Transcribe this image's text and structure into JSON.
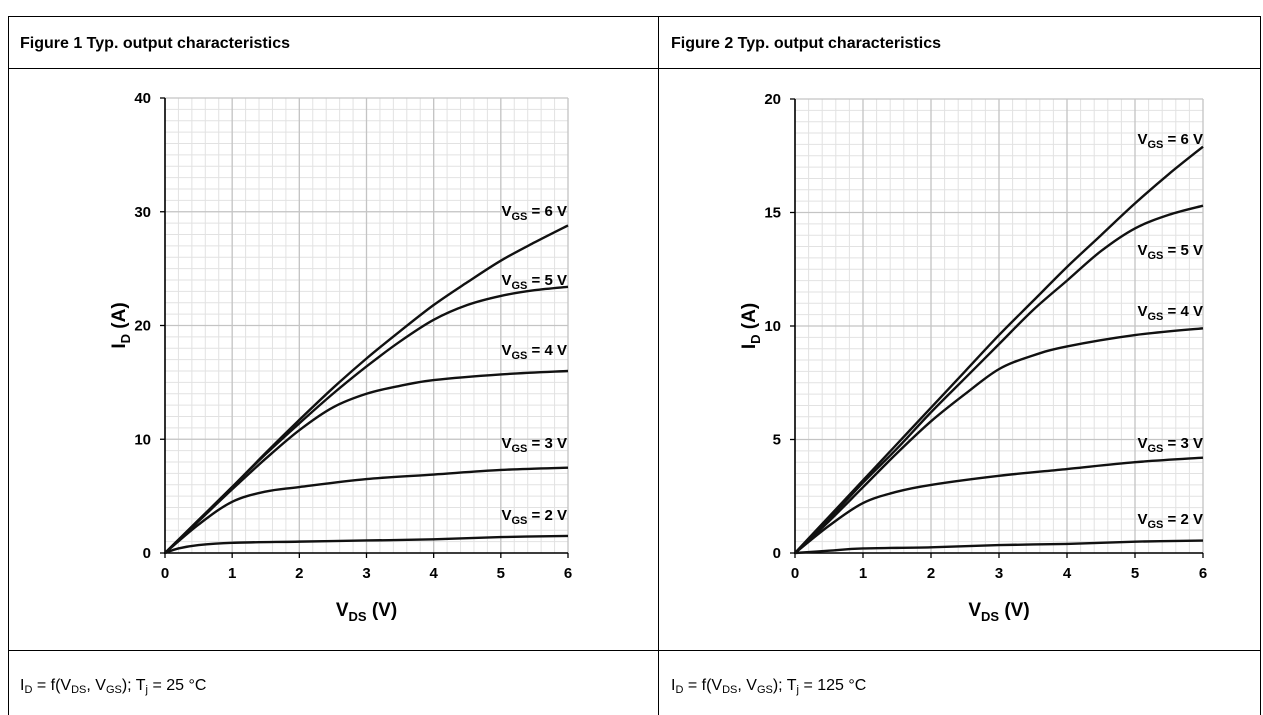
{
  "figures": [
    {
      "header": "Figure 1 Typ. output characteristics",
      "footer": {
        "i": "I",
        "d": "D",
        "eq": " = f(V",
        "ds": "DS",
        "comma": ", V",
        "gs": "GS",
        "tail1": "); T",
        "j": "j",
        "tail2": " = 25 °C"
      }
    },
    {
      "header": "Figure 2 Typ. output characteristics",
      "footer": {
        "i": "I",
        "d": "D",
        "eq": " = f(V",
        "ds": "DS",
        "comma": ", V",
        "gs": "GS",
        "tail1": "); T",
        "j": "j",
        "tail2": " = 125 °C"
      }
    }
  ],
  "chart_data": [
    {
      "type": "line",
      "title": "",
      "xlabel": "V_DS (V)",
      "ylabel": "I_D (A)",
      "xlim": [
        0,
        6
      ],
      "ylim": [
        0,
        40
      ],
      "x_ticks": [
        "0",
        "1",
        "2",
        "3",
        "4",
        "5",
        "6"
      ],
      "y_ticks": [
        "0",
        "10",
        "20",
        "30",
        "40"
      ],
      "grid": true,
      "series": [
        {
          "name": "V_GS = 2 V",
          "label_parts": [
            "V",
            "GS",
            " = 2 V"
          ],
          "x": [
            0,
            0.2,
            0.5,
            1,
            2,
            3,
            4,
            5,
            6
          ],
          "y": [
            0,
            0.4,
            0.7,
            0.9,
            1.0,
            1.1,
            1.2,
            1.4,
            1.5
          ]
        },
        {
          "name": "V_GS = 3 V",
          "label_parts": [
            "V",
            "GS",
            " = 3 V"
          ],
          "x": [
            0,
            0.5,
            1,
            1.5,
            2,
            3,
            4,
            5,
            6
          ],
          "y": [
            0,
            2.5,
            4.5,
            5.4,
            5.8,
            6.5,
            6.9,
            7.3,
            7.5
          ]
        },
        {
          "name": "V_GS = 4 V",
          "label_parts": [
            "V",
            "GS",
            " = 4 V"
          ],
          "x": [
            0,
            0.5,
            1,
            1.5,
            2,
            2.5,
            3,
            3.5,
            4,
            5,
            6
          ],
          "y": [
            0,
            2.8,
            5.6,
            8.3,
            10.8,
            12.8,
            14.0,
            14.7,
            15.2,
            15.7,
            16.0
          ]
        },
        {
          "name": "V_GS = 5 V",
          "label_parts": [
            "V",
            "GS",
            " = 5 V"
          ],
          "x": [
            0,
            0.5,
            1,
            1.5,
            2,
            2.5,
            3,
            3.5,
            4,
            4.5,
            5,
            5.5,
            6
          ],
          "y": [
            0,
            2.9,
            5.8,
            8.7,
            11.4,
            14.0,
            16.4,
            18.6,
            20.5,
            21.8,
            22.6,
            23.1,
            23.4
          ]
        },
        {
          "name": "V_GS = 6 V",
          "label_parts": [
            "V",
            "GS",
            " = 6 V"
          ],
          "x": [
            0,
            0.5,
            1,
            1.5,
            2,
            2.5,
            3,
            3.5,
            4,
            4.5,
            5,
            5.5,
            6
          ],
          "y": [
            0,
            2.9,
            5.8,
            8.8,
            11.7,
            14.5,
            17.1,
            19.5,
            21.8,
            23.8,
            25.7,
            27.3,
            28.8
          ]
        }
      ]
    },
    {
      "type": "line",
      "title": "",
      "xlabel": "V_DS (V)",
      "ylabel": "I_D (A)",
      "xlim": [
        0,
        6
      ],
      "ylim": [
        0,
        20
      ],
      "x_ticks": [
        "0",
        "1",
        "2",
        "3",
        "4",
        "5",
        "6"
      ],
      "y_ticks": [
        "0",
        "5",
        "10",
        "15",
        "20"
      ],
      "grid": true,
      "series": [
        {
          "name": "V_GS = 2 V",
          "label_parts": [
            "V",
            "GS",
            " = 2 V"
          ],
          "x": [
            0,
            0.5,
            1,
            2,
            3,
            4,
            5,
            6
          ],
          "y": [
            0,
            0.1,
            0.2,
            0.25,
            0.35,
            0.4,
            0.5,
            0.55
          ]
        },
        {
          "name": "V_GS = 3 V",
          "label_parts": [
            "V",
            "GS",
            " = 3 V"
          ],
          "x": [
            0,
            0.5,
            1,
            1.5,
            2,
            3,
            4,
            5,
            6
          ],
          "y": [
            0,
            1.2,
            2.2,
            2.7,
            3.0,
            3.4,
            3.7,
            4.0,
            4.2
          ]
        },
        {
          "name": "V_GS = 4 V",
          "label_parts": [
            "V",
            "GS",
            " = 4 V"
          ],
          "x": [
            0,
            0.5,
            1,
            1.5,
            2,
            2.5,
            3,
            3.5,
            4,
            5,
            6
          ],
          "y": [
            0,
            1.4,
            2.9,
            4.4,
            5.8,
            7.0,
            8.1,
            8.7,
            9.1,
            9.6,
            9.9
          ]
        },
        {
          "name": "V_GS = 5 V",
          "label_parts": [
            "V",
            "GS",
            " = 5 V"
          ],
          "x": [
            0,
            0.5,
            1,
            1.5,
            2,
            2.5,
            3,
            3.5,
            4,
            4.5,
            5,
            5.5,
            6
          ],
          "y": [
            0,
            1.5,
            3.1,
            4.6,
            6.2,
            7.7,
            9.2,
            10.7,
            12.0,
            13.3,
            14.3,
            14.9,
            15.3
          ]
        },
        {
          "name": "V_GS = 6 V",
          "label_parts": [
            "V",
            "GS",
            " = 6 V"
          ],
          "x": [
            0,
            0.5,
            1,
            1.5,
            2,
            2.5,
            3,
            3.5,
            4,
            4.5,
            5,
            5.5,
            6
          ],
          "y": [
            0,
            1.6,
            3.2,
            4.8,
            6.4,
            8.0,
            9.6,
            11.1,
            12.6,
            14.0,
            15.4,
            16.7,
            17.9
          ]
        }
      ]
    }
  ]
}
